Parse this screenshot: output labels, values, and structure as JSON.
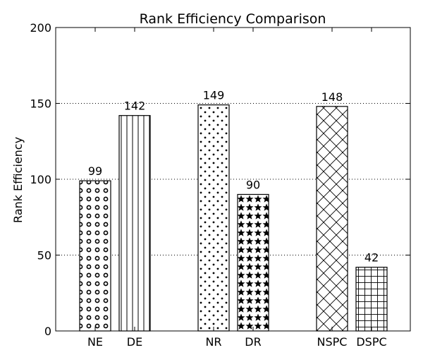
{
  "chart_data": {
    "type": "bar",
    "title": "Rank Efficiency Comparison",
    "xlabel": "",
    "ylabel": "Rank Efficiency",
    "ylim": [
      0,
      200
    ],
    "yticks": [
      0,
      50,
      100,
      150,
      200
    ],
    "grid": "horizontal dotted",
    "categories": [
      "NE",
      "DE",
      "NR",
      "DR",
      "NSPC",
      "DSPC"
    ],
    "values": [
      99,
      142,
      149,
      90,
      148,
      42
    ],
    "data_labels": [
      "99",
      "142",
      "149",
      "90",
      "148",
      "42"
    ],
    "groups": [
      [
        "NE",
        "DE"
      ],
      [
        "NR",
        "DR"
      ],
      [
        "NSPC",
        "DSPC"
      ]
    ],
    "patterns": [
      "circles",
      "vertical-lines",
      "dots",
      "stars",
      "crosshatch-diagonal",
      "grid"
    ]
  }
}
